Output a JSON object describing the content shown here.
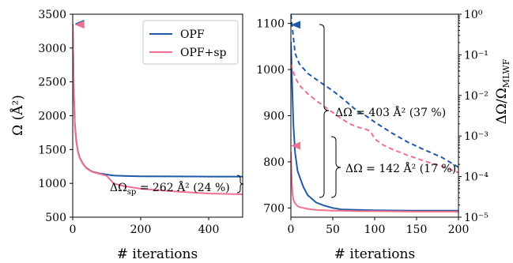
{
  "chart_data": [
    {
      "type": "line",
      "xlabel": "# iterations",
      "ylabel": "Ω (Å²)",
      "xlim": [
        0,
        500
      ],
      "ylim": [
        500,
        3500
      ],
      "xticks": [
        "0",
        "200",
        "400"
      ],
      "yticks": [
        "500",
        "1000",
        "1500",
        "2000",
        "2500",
        "3000",
        "3500"
      ],
      "grid": false,
      "legend_position": "top-right",
      "colors": {
        "OPF": "#1f5aa6",
        "OPF+sp": "#f07090"
      },
      "series": [
        {
          "name": "OPF",
          "x": [
            0,
            3,
            6,
            10,
            15,
            20,
            30,
            40,
            50,
            60,
            80,
            100,
            120,
            150,
            200,
            300,
            400,
            500
          ],
          "y": [
            3350,
            2400,
            1900,
            1650,
            1480,
            1390,
            1290,
            1230,
            1195,
            1170,
            1145,
            1130,
            1115,
            1110,
            1105,
            1102,
            1100,
            1100
          ]
        },
        {
          "name": "OPF+sp",
          "x": [
            0,
            3,
            6,
            10,
            15,
            20,
            30,
            40,
            50,
            60,
            80,
            100,
            120,
            150,
            200,
            300,
            400,
            500
          ],
          "y": [
            3320,
            2380,
            1880,
            1630,
            1470,
            1380,
            1285,
            1225,
            1190,
            1165,
            1140,
            1110,
            1000,
            960,
            920,
            880,
            850,
            838
          ]
        }
      ],
      "markers": [
        {
          "series": "OPF",
          "x": 20,
          "y": 3360
        },
        {
          "series": "OPF+sp",
          "x": 20,
          "y": 3345
        }
      ],
      "annotation": {
        "text": "ΔΩ_sp = 262 Å² (24 %)",
        "y_from": 838,
        "y_to": 1100
      }
    },
    {
      "type": "line",
      "xlabel": "# iterations",
      "ylabel_left": "",
      "ylabel_right": "ΔΩ/Ω_MLWF",
      "xlim": [
        0,
        200
      ],
      "ylim_left": [
        680,
        1120
      ],
      "ylim_right_log": [
        1e-05,
        1
      ],
      "xticks": [
        "0",
        "50",
        "100",
        "150",
        "200"
      ],
      "yticks_left": [
        "700",
        "800",
        "900",
        "1000",
        "1100"
      ],
      "yticks_right": [
        "10⁻⁵",
        "10⁻⁴",
        "10⁻³",
        "10⁻²",
        "10⁻¹",
        "10⁰"
      ],
      "series": [
        {
          "name": "OPF",
          "style": "solid",
          "x": [
            0,
            1,
            2,
            3,
            5,
            8,
            12,
            15,
            20,
            25,
            30,
            40,
            50,
            60,
            80,
            100,
            150,
            200
          ],
          "y": [
            1060,
            1000,
            940,
            880,
            820,
            780,
            760,
            745,
            728,
            720,
            712,
            705,
            700,
            697,
            696,
            695,
            694,
            694
          ]
        },
        {
          "name": "OPF+sp",
          "style": "solid",
          "x": [
            0,
            1,
            2,
            3,
            5,
            8,
            10,
            15,
            20,
            30,
            40,
            50,
            60,
            80,
            100,
            150,
            200
          ],
          "y": [
            822,
            760,
            730,
            718,
            710,
            704,
            702,
            700,
            698,
            696,
            695,
            694,
            694,
            693,
            693,
            692,
            692
          ]
        },
        {
          "name": "OPF",
          "style": "dashed",
          "axis": "right",
          "x": [
            0,
            5,
            10,
            20,
            30,
            40,
            50,
            60,
            70,
            80,
            90,
            100,
            120,
            140,
            160,
            180,
            200
          ],
          "y": [
            1.0,
            0.11,
            0.06,
            0.035,
            0.025,
            0.018,
            0.013,
            0.009,
            0.006,
            0.004,
            0.0031,
            0.0022,
            0.0012,
            0.0007,
            0.00045,
            0.0003,
            0.00017
          ]
        },
        {
          "name": "OPF+sp",
          "style": "dashed",
          "axis": "right",
          "x": [
            0,
            5,
            10,
            20,
            30,
            40,
            50,
            60,
            70,
            80,
            90,
            95,
            100,
            110,
            120,
            140,
            160,
            180,
            200
          ],
          "y": [
            0.06,
            0.028,
            0.018,
            0.011,
            0.0075,
            0.0053,
            0.0038,
            0.0027,
            0.002,
            0.00165,
            0.00145,
            0.0013,
            0.00085,
            0.0006,
            0.00048,
            0.00033,
            0.00024,
            0.00018,
            0.000125
          ]
        }
      ],
      "markers": [
        {
          "series": "OPF",
          "x": 2,
          "y": 1097
        },
        {
          "series": "OPF+sp",
          "x": 2,
          "y": 835
        }
      ],
      "annotations": [
        {
          "text": "ΔΩ = 403 Å² (37 %)",
          "y_from": 697,
          "y_to": 1100
        },
        {
          "text": "ΔΩ = 142 Å² (17 %)",
          "y_from": 693,
          "y_to": 835
        }
      ]
    }
  ]
}
